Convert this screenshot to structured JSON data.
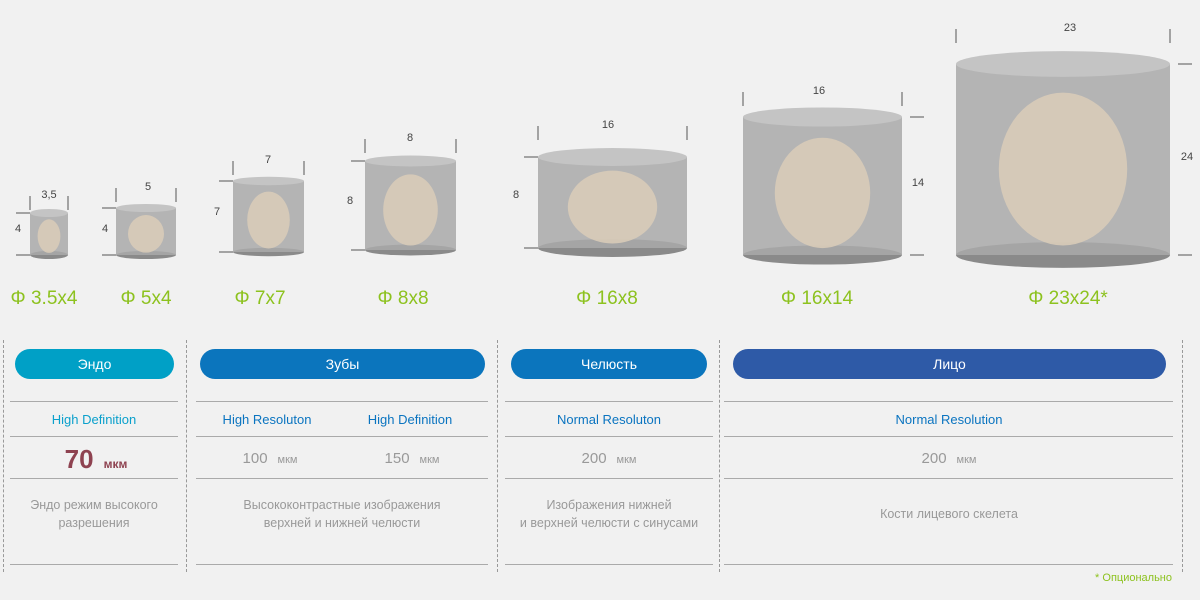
{
  "volumes": [
    {
      "label": "Φ 3.5x4",
      "diameter": "3,5",
      "height": "4"
    },
    {
      "label": "Φ 5x4",
      "diameter": "5",
      "height": "4"
    },
    {
      "label": "Φ 7x7",
      "diameter": "7",
      "height": "7"
    },
    {
      "label": "Φ 8x8",
      "diameter": "8",
      "height": "8"
    },
    {
      "label": "Φ 16x8",
      "diameter": "16",
      "height": "8"
    },
    {
      "label": "Φ 16x14",
      "diameter": "16",
      "height": "14"
    },
    {
      "label": "Φ 23x24*",
      "diameter": "23",
      "height": "24"
    }
  ],
  "categories": [
    {
      "label": "Эндо",
      "color": "#00a0c6"
    },
    {
      "label": "Зубы",
      "color": "#0b75bd"
    },
    {
      "label": "Челюсть",
      "color": "#0b75bd"
    },
    {
      "label": "Лицо",
      "color": "#2e5aa7"
    }
  ],
  "modes": {
    "endo": "High Definition",
    "teeth_hr": "High Resoluton",
    "teeth_hd": "High Definition",
    "jaw": "Normal Resoluton",
    "face": "Normal Resolution"
  },
  "values": {
    "endo": "70",
    "teeth_hr": "100",
    "teeth_hd": "150",
    "jaw": "200",
    "face": "200",
    "unit": "мкм"
  },
  "descriptions": {
    "endo": [
      "Эндо режим высокого",
      "разрешения"
    ],
    "teeth": [
      "Высококонтрастные изображения",
      "верхней и нижней челюсти"
    ],
    "jaw": [
      "Изображения нижней",
      "и верхней челюсти с синусами"
    ],
    "face": [
      "Кости лицевого скелета"
    ]
  },
  "footnote": "* Опционально"
}
